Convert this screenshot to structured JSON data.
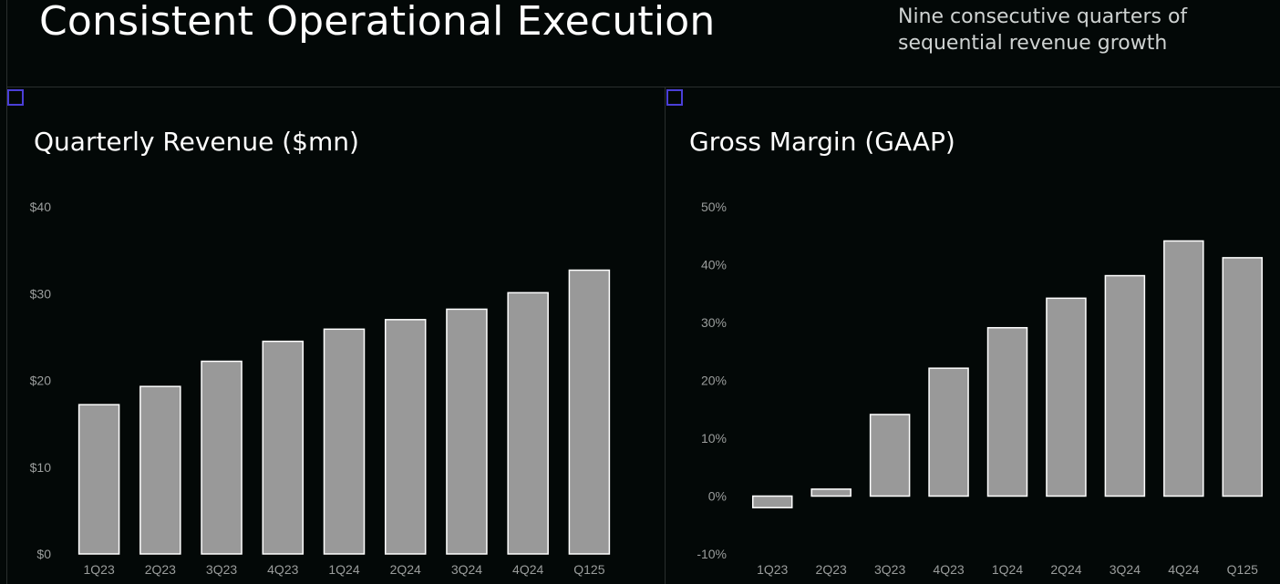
{
  "page": {
    "title": "Consistent Operational Execution",
    "subtitle": "Nine consecutive quarters of sequential revenue growth"
  },
  "colors": {
    "background": "#030807",
    "bar_fill": "#999999",
    "bar_stroke": "#ffffff",
    "tick_text": "#9a9d9c",
    "accent_marker": "#4b3fd8"
  },
  "chart_data": [
    {
      "type": "bar",
      "title": "Quarterly Revenue ($mn)",
      "categories": [
        "1Q23",
        "2Q23",
        "3Q23",
        "4Q23",
        "1Q24",
        "2Q24",
        "3Q24",
        "4Q24",
        "Q125"
      ],
      "values": [
        17.2,
        19.3,
        22.2,
        24.5,
        25.9,
        27.0,
        28.2,
        30.1,
        32.7
      ],
      "ylim": [
        0,
        40
      ],
      "yticks": [
        0,
        10,
        20,
        30,
        40
      ],
      "ytick_labels": [
        "$0",
        "$10",
        "$20",
        "$30",
        "$40"
      ],
      "grid": false,
      "xlabel": "",
      "ylabel": ""
    },
    {
      "type": "bar",
      "title": "Gross Margin (GAAP)",
      "categories": [
        "1Q23",
        "2Q23",
        "3Q23",
        "4Q23",
        "1Q24",
        "2Q24",
        "3Q24",
        "4Q24",
        "Q125"
      ],
      "values": [
        -2,
        1.2,
        14.1,
        22.1,
        29.1,
        34.2,
        38.1,
        44.1,
        41.2
      ],
      "ylim": [
        -10,
        50
      ],
      "yticks": [
        -10,
        0,
        10,
        20,
        30,
        40,
        50
      ],
      "ytick_labels": [
        "-10%",
        "0%",
        "10%",
        "20%",
        "30%",
        "40%",
        "50%"
      ],
      "grid": false,
      "xlabel": "",
      "ylabel": ""
    }
  ]
}
